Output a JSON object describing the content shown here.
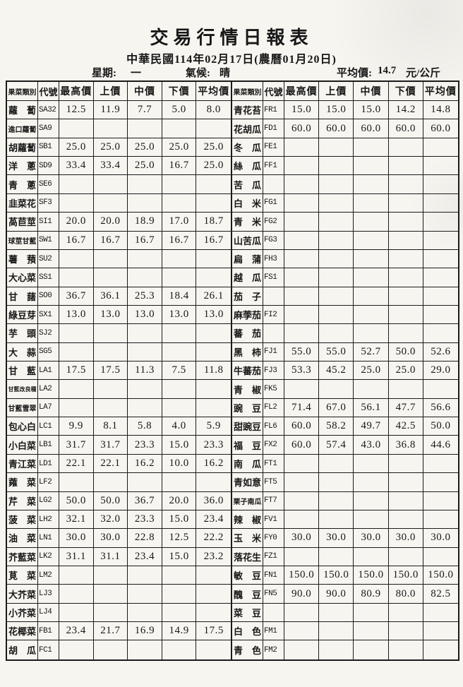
{
  "title": "交易行情日報表",
  "subtitle": "中華民國114年02月17日(農曆01月20日)",
  "meta": {
    "weekday_label": "星期:",
    "weekday": "一",
    "weather_label": "氣候:",
    "weather": "晴",
    "avg_label": "平均價:",
    "avg_value": "14.7",
    "unit": "元/公斤"
  },
  "colors": {
    "paper": "#f7f5f0",
    "ink": "#1b1b1b"
  },
  "table": {
    "headers": [
      "果菜類別",
      "代號",
      "最高價",
      "上價",
      "中價",
      "下價",
      "平均價"
    ],
    "left_rows": [
      {
        "name": "蘿蔔",
        "code": "SA32",
        "values": [
          "12.5",
          "11.9",
          "7.7",
          "5.0",
          "8.0"
        ]
      },
      {
        "name": "進口蘿蔔",
        "code": "SA9",
        "values": []
      },
      {
        "name": "胡蘿蔔",
        "code": "SB1",
        "values": [
          "25.0",
          "25.0",
          "25.0",
          "25.0",
          "25.0"
        ]
      },
      {
        "name": "洋蔥",
        "code": "SD9",
        "values": [
          "33.4",
          "33.4",
          "25.0",
          "16.7",
          "25.0"
        ]
      },
      {
        "name": "青蔥",
        "code": "SE6",
        "values": []
      },
      {
        "name": "韭菜花",
        "code": "SF3",
        "values": []
      },
      {
        "name": "萵苣莖",
        "code": "SI1",
        "values": [
          "20.0",
          "20.0",
          "18.9",
          "17.0",
          "18.7"
        ]
      },
      {
        "name": "球莖甘藍",
        "code": "SW1",
        "values": [
          "16.7",
          "16.7",
          "16.7",
          "16.7",
          "16.7"
        ]
      },
      {
        "name": "薯蕷",
        "code": "SU2",
        "values": []
      },
      {
        "name": "大心菜",
        "code": "SS1",
        "values": []
      },
      {
        "name": "甘藷",
        "code": "SO0",
        "values": [
          "36.7",
          "36.1",
          "25.3",
          "18.4",
          "26.1"
        ]
      },
      {
        "name": "綠豆芽",
        "code": "SX1",
        "values": [
          "13.0",
          "13.0",
          "13.0",
          "13.0",
          "13.0"
        ]
      },
      {
        "name": "芋頭",
        "code": "SJ2",
        "values": []
      },
      {
        "name": "大蒜",
        "code": "SG5",
        "values": []
      },
      {
        "name": "甘藍",
        "code": "LA1",
        "values": [
          "17.5",
          "17.5",
          "11.3",
          "7.5",
          "11.8"
        ]
      },
      {
        "name": "甘藍改良種",
        "code": "LA2",
        "values": []
      },
      {
        "name": "甘藍雪翠",
        "code": "LA7",
        "values": []
      },
      {
        "name": "包心白",
        "code": "LC1",
        "values": [
          "9.9",
          "8.1",
          "5.8",
          "4.0",
          "5.9"
        ]
      },
      {
        "name": "小白菜",
        "code": "LB1",
        "values": [
          "31.7",
          "31.7",
          "23.3",
          "15.0",
          "23.3"
        ]
      },
      {
        "name": "青江菜",
        "code": "LD1",
        "values": [
          "22.1",
          "22.1",
          "16.2",
          "10.0",
          "16.2"
        ]
      },
      {
        "name": "蕹菜",
        "code": "LF2",
        "values": []
      },
      {
        "name": "芹菜",
        "code": "LG2",
        "values": [
          "50.0",
          "50.0",
          "36.7",
          "20.0",
          "36.0"
        ]
      },
      {
        "name": "菠菜",
        "code": "LH2",
        "values": [
          "32.1",
          "32.0",
          "23.3",
          "15.0",
          "23.4"
        ]
      },
      {
        "name": "油菜",
        "code": "LN1",
        "values": [
          "30.0",
          "30.0",
          "22.8",
          "12.5",
          "22.2"
        ]
      },
      {
        "name": "芥藍菜",
        "code": "LK2",
        "values": [
          "31.1",
          "31.1",
          "23.4",
          "15.0",
          "23.2"
        ]
      },
      {
        "name": "莧菜",
        "code": "LM2",
        "values": []
      },
      {
        "name": "大芥菜",
        "code": "LJ3",
        "values": []
      },
      {
        "name": "小芥菜",
        "code": "LJ4",
        "values": []
      },
      {
        "name": "花椰菜",
        "code": "FB1",
        "values": [
          "23.4",
          "21.7",
          "16.9",
          "14.9",
          "17.5"
        ]
      },
      {
        "name": "胡瓜",
        "code": "FC1",
        "values": []
      }
    ],
    "right_rows": [
      {
        "name": "青花苔",
        "code": "FR1",
        "values": [
          "15.0",
          "15.0",
          "15.0",
          "14.2",
          "14.8"
        ]
      },
      {
        "name": "花胡瓜",
        "code": "FD1",
        "values": [
          "60.0",
          "60.0",
          "60.0",
          "60.0",
          "60.0"
        ]
      },
      {
        "name": "冬瓜",
        "code": "FE1",
        "values": []
      },
      {
        "name": "絲瓜",
        "code": "FF1",
        "values": []
      },
      {
        "name": "苦瓜",
        "code": "",
        "values": []
      },
      {
        "name": "白米",
        "code": "FG1",
        "values": []
      },
      {
        "name": "青米",
        "code": "FG2",
        "values": []
      },
      {
        "name": "山苦瓜",
        "code": "FG3",
        "values": []
      },
      {
        "name": "扁蒲",
        "code": "FH3",
        "values": []
      },
      {
        "name": "越瓜",
        "code": "FS1",
        "values": []
      },
      {
        "name": "茄子",
        "code": "",
        "values": []
      },
      {
        "name": "麻荸茄",
        "code": "FI2",
        "values": []
      },
      {
        "name": "蕃茄",
        "code": "",
        "values": []
      },
      {
        "name": "黑柿",
        "code": "FJ1",
        "values": [
          "55.0",
          "55.0",
          "52.7",
          "50.0",
          "52.6"
        ]
      },
      {
        "name": "牛蕃茄",
        "code": "FJ3",
        "values": [
          "53.3",
          "45.2",
          "25.0",
          "25.0",
          "29.0"
        ]
      },
      {
        "name": "青椒",
        "code": "FK5",
        "values": []
      },
      {
        "name": "豌豆",
        "code": "FL2",
        "values": [
          "71.4",
          "67.0",
          "56.1",
          "47.7",
          "56.6"
        ]
      },
      {
        "name": "甜豌豆",
        "code": "FL6",
        "values": [
          "60.0",
          "58.2",
          "49.7",
          "42.5",
          "50.0"
        ]
      },
      {
        "name": "福豆",
        "code": "FX2",
        "values": [
          "60.0",
          "57.4",
          "43.0",
          "36.8",
          "44.6"
        ]
      },
      {
        "name": "南瓜",
        "code": "FT1",
        "values": []
      },
      {
        "name": "青如意",
        "code": "FT5",
        "values": []
      },
      {
        "name": "栗子南瓜",
        "code": "FT7",
        "values": []
      },
      {
        "name": "辣椒",
        "code": "FV1",
        "values": []
      },
      {
        "name": "玉米",
        "code": "FY0",
        "values": [
          "30.0",
          "30.0",
          "30.0",
          "30.0",
          "30.0"
        ]
      },
      {
        "name": "落花生",
        "code": "FZ1",
        "values": []
      },
      {
        "name": "敏豆",
        "code": "FN1",
        "values": [
          "150.0",
          "150.0",
          "150.0",
          "150.0",
          "150.0"
        ]
      },
      {
        "name": "醜豆",
        "code": "FN5",
        "values": [
          "90.0",
          "90.0",
          "80.9",
          "80.0",
          "82.5"
        ]
      },
      {
        "name": "菜豆",
        "code": "",
        "values": []
      },
      {
        "name": "白色",
        "code": "FM1",
        "values": []
      },
      {
        "name": "青色",
        "code": "FM2",
        "values": []
      }
    ]
  }
}
